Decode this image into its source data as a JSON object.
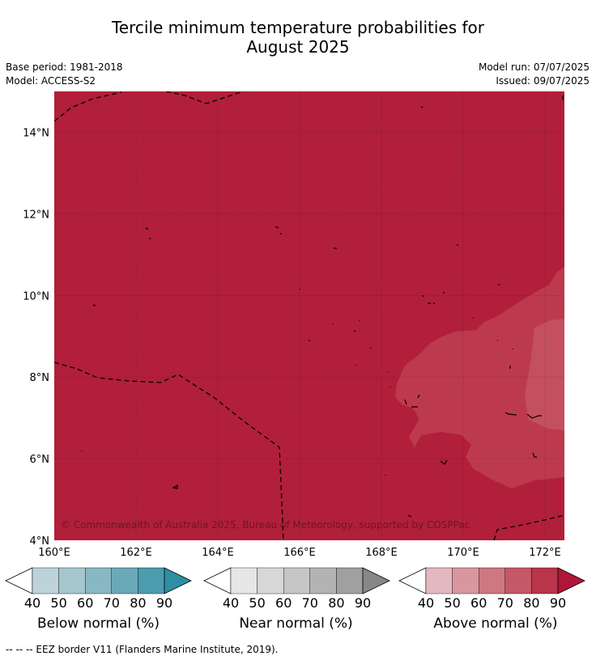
{
  "title": {
    "line1": "Tercile minimum temperature probabilities for",
    "line2": "August 2025"
  },
  "meta": {
    "base_period": "Base period: 1981-2018",
    "model": "Model: ACCESS-S2",
    "model_run": "Model run: 07/07/2025",
    "issued": "Issued: 09/07/2025"
  },
  "map": {
    "lon_labels": [
      "160°E",
      "162°E",
      "164°E",
      "166°E",
      "168°E",
      "170°E",
      "172°E"
    ],
    "lat_labels": [
      "14°N",
      "12°N",
      "10°N",
      "8°N",
      "6°N",
      "4°N"
    ],
    "copyright": "© Commonwealth of Australia 2025, Bureau of Meteorology, supported by COSPPac",
    "colors": {
      "above_80_90": "#b11f3a",
      "above_70_80": "#bd3a4c",
      "above_60_70": "#c4505d"
    }
  },
  "colorbars": [
    {
      "label": "Below normal (%)",
      "ticks": [
        "40",
        "50",
        "60",
        "70",
        "80",
        "90"
      ],
      "colors": [
        "#bcd3da",
        "#a4c6cd",
        "#88b8c3",
        "#6aaab8",
        "#4b9cad",
        "#2e8ea2"
      ]
    },
    {
      "label": "Near normal (%)",
      "ticks": [
        "40",
        "50",
        "60",
        "70",
        "80",
        "90"
      ],
      "colors": [
        "#e6e6e6",
        "#d7d7d7",
        "#c6c6c6",
        "#b3b3b3",
        "#a0a0a0",
        "#878787"
      ]
    },
    {
      "label": "Above normal (%)",
      "ticks": [
        "40",
        "50",
        "60",
        "70",
        "80",
        "90"
      ],
      "colors": [
        "#e3b9bf",
        "#d8979f",
        "#ce7882",
        "#c45866",
        "#b93549",
        "#b0163a"
      ]
    }
  ],
  "footer": "--  --  -- EEZ border V11 (Flanders Marine Institute, 2019)."
}
